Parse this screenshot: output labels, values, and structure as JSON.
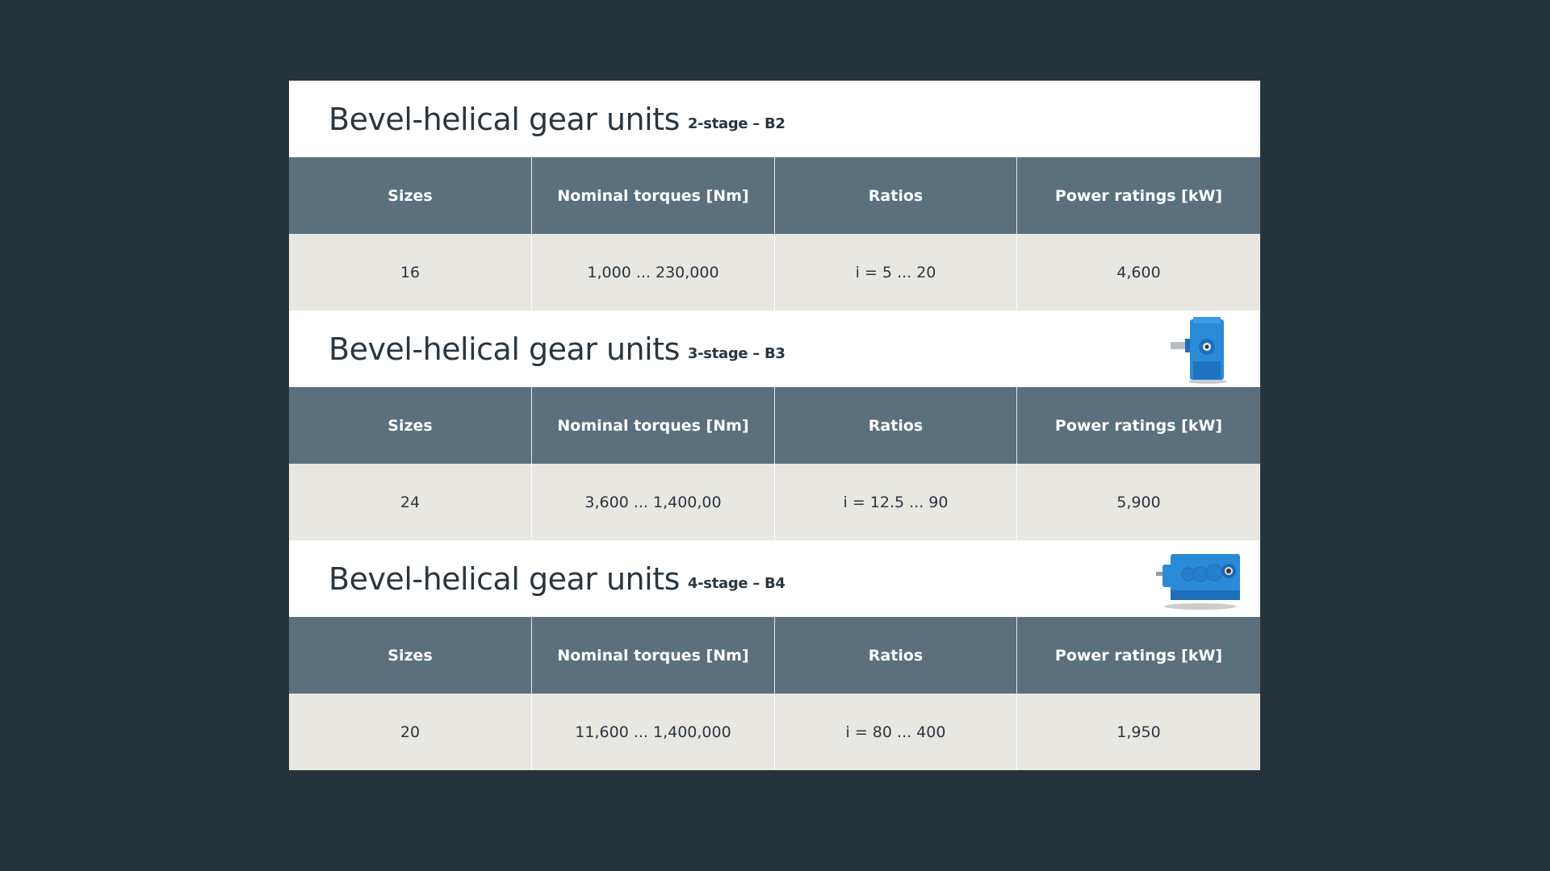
{
  "sections": [
    {
      "title": "Bevel-helical gear units",
      "subtitle": "2-stage – B2",
      "image": "none",
      "headers": [
        "Sizes",
        "Nominal torques [Nm]",
        "Ratios",
        "Power ratings [kW]"
      ],
      "values": [
        "16",
        "1,000 ... 230,000",
        "i = 5 ... 20",
        "4,600"
      ]
    },
    {
      "title": "Bevel-helical gear units",
      "subtitle": "3-stage – B3",
      "image": "vertical-gearbox",
      "headers": [
        "Sizes",
        "Nominal torques [Nm]",
        "Ratios",
        "Power ratings [kW]"
      ],
      "values": [
        "24",
        "3,600 ... 1,400,00",
        "i = 12.5 ... 90",
        "5,900"
      ]
    },
    {
      "title": "Bevel-helical gear units",
      "subtitle": "4-stage – B4",
      "image": "horizontal-gearbox",
      "headers": [
        "Sizes",
        "Nominal torques [Nm]",
        "Ratios",
        "Power ratings [kW]"
      ],
      "values": [
        "20",
        "11,600 ... 1,400,000",
        "i = 80 ... 400",
        "1,950"
      ]
    }
  ],
  "colors": {
    "background": "#27333a",
    "header": "#5b707d",
    "data_row": "#e8e7e1",
    "product_blue": "#2a8ad8"
  }
}
